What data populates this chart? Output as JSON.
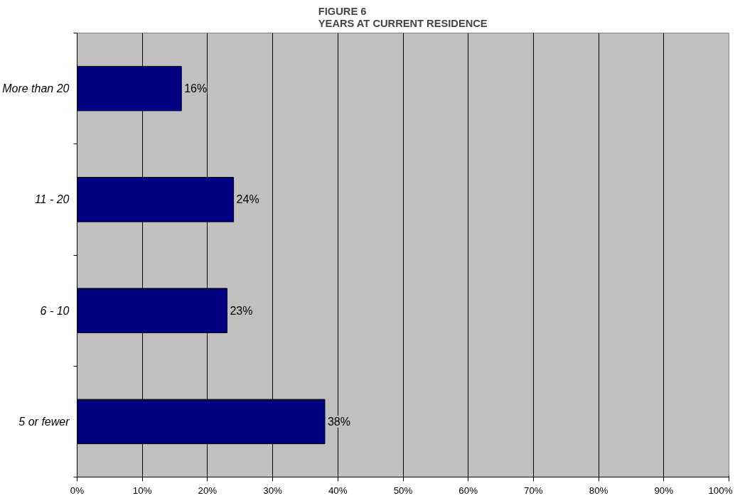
{
  "chart_data": {
    "type": "bar",
    "orientation": "horizontal",
    "title": "FIGURE 6\nYEARS AT CURRENT RESIDENCE",
    "categories": [
      "More than 20",
      "11 - 20",
      "6 - 10",
      "5 or fewer"
    ],
    "values": [
      16,
      24,
      23,
      38
    ],
    "color": "#000080",
    "value_labels": [
      "16%",
      "24%",
      "23%",
      "38%"
    ],
    "xlim": [
      0,
      100
    ],
    "xticks": [
      {
        "value": 0,
        "label": "0%"
      },
      {
        "value": 10,
        "label": "10%"
      },
      {
        "value": 20,
        "label": "20%"
      },
      {
        "value": 30,
        "label": "30%"
      },
      {
        "value": 40,
        "label": "40%"
      },
      {
        "value": 50,
        "label": "50%"
      },
      {
        "value": 60,
        "label": "60%"
      },
      {
        "value": 70,
        "label": "70%"
      },
      {
        "value": 80,
        "label": "80%"
      },
      {
        "value": 90,
        "label": "90%"
      },
      {
        "value": 100,
        "label": "100%"
      }
    ],
    "grid": "x"
  }
}
